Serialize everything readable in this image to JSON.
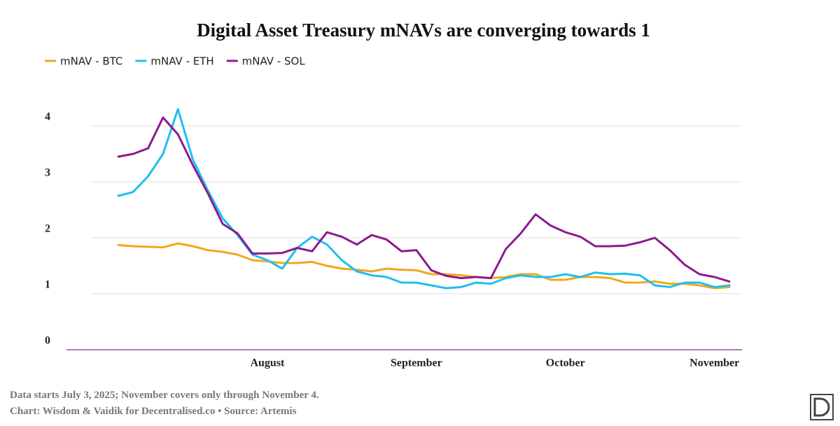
{
  "chart_data": {
    "type": "line",
    "title": "Digital Asset Treasury mNAVs are converging towards 1",
    "categories": [
      null,
      null,
      null,
      null,
      null,
      null,
      null,
      null,
      null,
      null,
      "August",
      null,
      null,
      null,
      null,
      null,
      null,
      null,
      null,
      null,
      "September",
      null,
      null,
      null,
      null,
      null,
      null,
      null,
      null,
      null,
      "October",
      null,
      null,
      null,
      null,
      null,
      null,
      null,
      null,
      null,
      "November",
      null
    ],
    "series": [
      {
        "name": "mNAV - BTC",
        "color": "#f0a81c",
        "values": [
          1.87,
          1.85,
          1.84,
          1.83,
          1.9,
          1.85,
          1.78,
          1.75,
          1.7,
          1.6,
          1.58,
          1.55,
          1.55,
          1.57,
          1.5,
          1.45,
          1.43,
          1.4,
          1.45,
          1.43,
          1.42,
          1.35,
          1.35,
          1.33,
          1.3,
          1.28,
          1.3,
          1.35,
          1.35,
          1.25,
          1.25,
          1.3,
          1.3,
          1.28,
          1.2,
          1.2,
          1.22,
          1.18,
          1.18,
          1.15,
          1.1,
          1.12
        ]
      },
      {
        "name": "mNAV - ETH",
        "color": "#1fbfef",
        "values": [
          2.75,
          2.82,
          3.1,
          3.5,
          4.3,
          3.4,
          2.85,
          2.35,
          2.05,
          1.7,
          1.6,
          1.45,
          1.82,
          2.02,
          1.88,
          1.6,
          1.4,
          1.33,
          1.3,
          1.2,
          1.2,
          1.15,
          1.1,
          1.12,
          1.2,
          1.18,
          1.28,
          1.33,
          1.3,
          1.3,
          1.35,
          1.3,
          1.38,
          1.35,
          1.36,
          1.33,
          1.15,
          1.12,
          1.2,
          1.2,
          1.12,
          1.15
        ]
      },
      {
        "name": "mNAV - SOL",
        "color": "#8b1a8f",
        "values": [
          3.45,
          3.5,
          3.6,
          4.15,
          3.85,
          3.3,
          2.8,
          2.25,
          2.08,
          1.72,
          1.72,
          1.73,
          1.82,
          1.76,
          2.1,
          2.02,
          1.88,
          2.05,
          1.97,
          1.76,
          1.78,
          1.42,
          1.32,
          1.28,
          1.3,
          1.28,
          1.8,
          2.08,
          2.42,
          2.22,
          2.1,
          2.02,
          1.85,
          1.85,
          1.86,
          1.92,
          2.0,
          1.78,
          1.52,
          1.35,
          1.3,
          1.22
        ]
      }
    ],
    "ylim": [
      0,
      5
    ],
    "yticks": [
      0,
      1,
      2,
      3,
      4
    ],
    "grid": true,
    "legend": "top-left",
    "notes": [
      "Data starts July 3, 2025; November covers only through November 4.",
      "Chart: Wisdom & Vaidik for Decentralised.co • Source: Artemis"
    ]
  }
}
